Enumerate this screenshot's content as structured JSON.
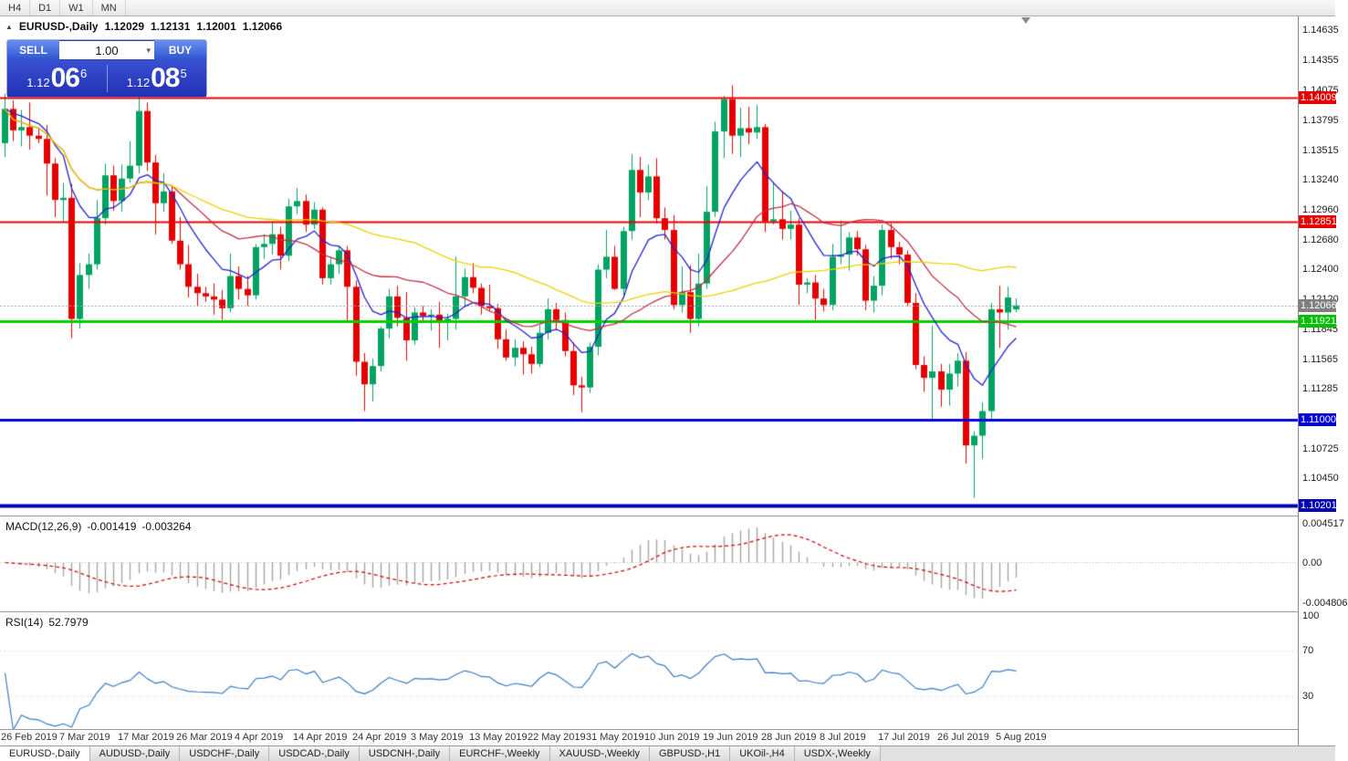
{
  "toolbar": {
    "timeframes": [
      {
        "label": "H4"
      },
      {
        "label": "D1"
      },
      {
        "label": "W1"
      },
      {
        "label": "MN"
      }
    ]
  },
  "chart_header": {
    "collapse_icon": "▲",
    "symbol": "EURUSD-,Daily",
    "open": "1.12029",
    "high": "1.12131",
    "low": "1.12001",
    "close": "1.12066"
  },
  "trade_panel": {
    "sell_label": "SELL",
    "buy_label": "BUY",
    "volume": "1.00",
    "volume_dropdown_icon": "▾",
    "sell_price": {
      "prefix": "1.12",
      "pips": "06",
      "point": "6"
    },
    "buy_price": {
      "prefix": "1.12",
      "pips": "08",
      "point": "5"
    }
  },
  "price_axis": {
    "ticks": [
      "1.14635",
      "1.14355",
      "1.14075",
      "1.13795",
      "1.13515",
      "1.13240",
      "1.12960",
      "1.12680",
      "1.12400",
      "1.12120",
      "1.11845",
      "1.11565",
      "1.11285",
      "1.10725",
      "1.10450"
    ],
    "badges": [
      {
        "name": "resistance-line-1",
        "label": "1.14009",
        "price": 1.14009,
        "color": "#e80000"
      },
      {
        "name": "resistance-line-2",
        "label": "1.12851",
        "price": 1.12851,
        "color": "#e80000"
      },
      {
        "name": "current-price",
        "label": "1.12066",
        "price": 1.12066,
        "color": "#808080"
      },
      {
        "name": "support-line-green",
        "label": "1.11921",
        "price": 1.11921,
        "color": "#00c000"
      },
      {
        "name": "support-line-blue-1",
        "label": "1.11000",
        "price": 1.11,
        "color": "#0000e0"
      },
      {
        "name": "support-line-blue-2",
        "label": "1.10201",
        "price": 1.10201,
        "color": "#0000b4"
      }
    ]
  },
  "date_axis": {
    "ticks": [
      {
        "label": "26 Feb 2019",
        "bar": 0
      },
      {
        "label": "7 Mar 2019",
        "bar": 7
      },
      {
        "label": "17 Mar 2019",
        "bar": 14
      },
      {
        "label": "26 Mar 2019",
        "bar": 21
      },
      {
        "label": "4 Apr 2019",
        "bar": 28
      },
      {
        "label": "14 Apr 2019",
        "bar": 35
      },
      {
        "label": "24 Apr 2019",
        "bar": 42
      },
      {
        "label": "3 May 2019",
        "bar": 49
      },
      {
        "label": "13 May 2019",
        "bar": 56
      },
      {
        "label": "22 May 2019",
        "bar": 63
      },
      {
        "label": "31 May 2019",
        "bar": 70
      },
      {
        "label": "10 Jun 2019",
        "bar": 77
      },
      {
        "label": "19 Jun 2019",
        "bar": 84
      },
      {
        "label": "28 Jun 2019",
        "bar": 91
      },
      {
        "label": "8 Jul 2019",
        "bar": 98
      },
      {
        "label": "17 Jul 2019",
        "bar": 105
      },
      {
        "label": "26 Jul 2019",
        "bar": 112
      },
      {
        "label": "5 Aug 2019",
        "bar": 119
      }
    ]
  },
  "macd_panel": {
    "title": "MACD(12,26,9)",
    "value_main": "-0.001419",
    "value_signal": "-0.003264",
    "axis": [
      {
        "label": "0.004517",
        "value": 0.004517
      },
      {
        "label": "0.00",
        "value": 0
      },
      {
        "label": "-0.004806",
        "value": -0.004806
      }
    ]
  },
  "rsi_panel": {
    "title": "RSI(14)",
    "value": "52.7979",
    "axis": [
      {
        "label": "100",
        "value": 100
      },
      {
        "label": "70",
        "value": 70
      },
      {
        "label": "30",
        "value": 30
      }
    ]
  },
  "tabs": [
    {
      "label": "EURUSD-,Daily",
      "active": true
    },
    {
      "label": "AUDUSD-,Daily",
      "active": false
    },
    {
      "label": "USDCHF-,Daily",
      "active": false
    },
    {
      "label": "USDCAD-,Daily",
      "active": false
    },
    {
      "label": "USDCNH-,Daily",
      "active": false
    },
    {
      "label": "EURCHF-,Weekly",
      "active": false
    },
    {
      "label": "XAUUSD-,Weekly",
      "active": false
    },
    {
      "label": "GBPUSD-,H1",
      "active": false
    },
    {
      "label": "UKOil-,H4",
      "active": false
    },
    {
      "label": "USDX-,Weekly",
      "active": false
    }
  ],
  "chart_data": {
    "type": "candlestick",
    "symbol": "EURUSD",
    "timeframe": "Daily",
    "up_color": "#00a362",
    "down_color": "#e60000",
    "bars": [
      [
        1.1358,
        1.1404,
        1.1345,
        1.139
      ],
      [
        1.139,
        1.1398,
        1.136,
        1.137
      ],
      [
        1.137,
        1.1389,
        1.1355,
        1.1373
      ],
      [
        1.1373,
        1.1396,
        1.1352,
        1.1365
      ],
      [
        1.1365,
        1.1372,
        1.1358,
        1.1362
      ],
      [
        1.1362,
        1.1375,
        1.1309,
        1.1339
      ],
      [
        1.1339,
        1.1344,
        1.1289,
        1.1305
      ],
      [
        1.1305,
        1.1321,
        1.1285,
        1.1307
      ],
      [
        1.1307,
        1.132,
        1.1176,
        1.1194
      ],
      [
        1.1194,
        1.1246,
        1.1185,
        1.1235
      ],
      [
        1.1235,
        1.1255,
        1.1222,
        1.1245
      ],
      [
        1.1245,
        1.1305,
        1.124,
        1.1288
      ],
      [
        1.1288,
        1.1339,
        1.1282,
        1.1328
      ],
      [
        1.1328,
        1.1337,
        1.1295,
        1.1304
      ],
      [
        1.1304,
        1.1338,
        1.1294,
        1.1325
      ],
      [
        1.1325,
        1.136,
        1.1321,
        1.1337
      ],
      [
        1.1337,
        1.1405,
        1.133,
        1.1388
      ],
      [
        1.1388,
        1.1396,
        1.1332,
        1.134
      ],
      [
        1.134,
        1.1347,
        1.1273,
        1.1302
      ],
      [
        1.1302,
        1.133,
        1.1294,
        1.1313
      ],
      [
        1.1313,
        1.1319,
        1.1264,
        1.1267
      ],
      [
        1.1267,
        1.1289,
        1.124,
        1.1245
      ],
      [
        1.1245,
        1.1263,
        1.1214,
        1.1224
      ],
      [
        1.1224,
        1.1236,
        1.1206,
        1.1218
      ],
      [
        1.1218,
        1.1224,
        1.121,
        1.1215
      ],
      [
        1.1215,
        1.1227,
        1.1198,
        1.1212
      ],
      [
        1.1212,
        1.1221,
        1.1193,
        1.1204
      ],
      [
        1.1204,
        1.1255,
        1.12,
        1.1234
      ],
      [
        1.1234,
        1.1243,
        1.1212,
        1.1222
      ],
      [
        1.1222,
        1.1234,
        1.1206,
        1.1216
      ],
      [
        1.1216,
        1.1264,
        1.1212,
        1.1261
      ],
      [
        1.1261,
        1.1273,
        1.125,
        1.1264
      ],
      [
        1.1264,
        1.1285,
        1.1254,
        1.1273
      ],
      [
        1.1273,
        1.128,
        1.124,
        1.1253
      ],
      [
        1.1253,
        1.1306,
        1.1248,
        1.1299
      ],
      [
        1.1299,
        1.1316,
        1.1292,
        1.1304
      ],
      [
        1.1304,
        1.131,
        1.1275,
        1.1282
      ],
      [
        1.1282,
        1.1303,
        1.1278,
        1.1296
      ],
      [
        1.1296,
        1.1298,
        1.1226,
        1.1232
      ],
      [
        1.1232,
        1.1252,
        1.1226,
        1.1245
      ],
      [
        1.1245,
        1.1262,
        1.1236,
        1.1258
      ],
      [
        1.1258,
        1.1262,
        1.1192,
        1.1224
      ],
      [
        1.1224,
        1.123,
        1.1141,
        1.1154
      ],
      [
        1.1154,
        1.1162,
        1.1108,
        1.1133
      ],
      [
        1.1133,
        1.1157,
        1.1117,
        1.115
      ],
      [
        1.115,
        1.1187,
        1.1145,
        1.1185
      ],
      [
        1.1185,
        1.1222,
        1.1176,
        1.1215
      ],
      [
        1.1215,
        1.1225,
        1.1187,
        1.1195
      ],
      [
        1.1195,
        1.1219,
        1.1155,
        1.1174
      ],
      [
        1.1174,
        1.1205,
        1.117,
        1.12
      ],
      [
        1.12,
        1.1206,
        1.119,
        1.1197
      ],
      [
        1.1197,
        1.1203,
        1.1183,
        1.1198
      ],
      [
        1.1198,
        1.121,
        1.1167,
        1.1191
      ],
      [
        1.1191,
        1.1199,
        1.1174,
        1.1194
      ],
      [
        1.1194,
        1.1252,
        1.1184,
        1.1215
      ],
      [
        1.1215,
        1.1241,
        1.1205,
        1.1233
      ],
      [
        1.1233,
        1.1246,
        1.1218,
        1.1223
      ],
      [
        1.1223,
        1.1227,
        1.1198,
        1.1206
      ],
      [
        1.1206,
        1.1226,
        1.1201,
        1.1204
      ],
      [
        1.1204,
        1.1208,
        1.1166,
        1.1175
      ],
      [
        1.1175,
        1.1184,
        1.1155,
        1.1158
      ],
      [
        1.1158,
        1.1175,
        1.115,
        1.1167
      ],
      [
        1.1167,
        1.1173,
        1.1142,
        1.1161
      ],
      [
        1.1161,
        1.1168,
        1.1143,
        1.1152
      ],
      [
        1.1152,
        1.1188,
        1.1149,
        1.1181
      ],
      [
        1.1181,
        1.1213,
        1.1175,
        1.1203
      ],
      [
        1.1203,
        1.1209,
        1.1183,
        1.1193
      ],
      [
        1.1193,
        1.12,
        1.1159,
        1.1164
      ],
      [
        1.1164,
        1.1172,
        1.1123,
        1.1132
      ],
      [
        1.1132,
        1.114,
        1.1107,
        1.113
      ],
      [
        1.113,
        1.1172,
        1.1125,
        1.1168
      ],
      [
        1.1168,
        1.1245,
        1.116,
        1.124
      ],
      [
        1.124,
        1.1277,
        1.1232,
        1.1252
      ],
      [
        1.1252,
        1.1262,
        1.1221,
        1.1222
      ],
      [
        1.1222,
        1.128,
        1.1215,
        1.1276
      ],
      [
        1.1276,
        1.1348,
        1.1268,
        1.1333
      ],
      [
        1.1333,
        1.1345,
        1.1289,
        1.1312
      ],
      [
        1.1312,
        1.1338,
        1.1305,
        1.1327
      ],
      [
        1.1327,
        1.1344,
        1.1283,
        1.1288
      ],
      [
        1.1288,
        1.1298,
        1.1268,
        1.1277
      ],
      [
        1.1277,
        1.1291,
        1.1203,
        1.1207
      ],
      [
        1.1207,
        1.1243,
        1.12,
        1.1219
      ],
      [
        1.1219,
        1.1244,
        1.1181,
        1.1194
      ],
      [
        1.1194,
        1.1255,
        1.1187,
        1.1227
      ],
      [
        1.1227,
        1.1318,
        1.1222,
        1.1294
      ],
      [
        1.1294,
        1.1378,
        1.1289,
        1.1369
      ],
      [
        1.1369,
        1.1402,
        1.1344,
        1.1399
      ],
      [
        1.1399,
        1.1412,
        1.1348,
        1.1365
      ],
      [
        1.1365,
        1.1391,
        1.1345,
        1.1372
      ],
      [
        1.1372,
        1.1392,
        1.1357,
        1.1368
      ],
      [
        1.1368,
        1.1394,
        1.1362,
        1.1373
      ],
      [
        1.1373,
        1.1376,
        1.1275,
        1.1285
      ],
      [
        1.1285,
        1.1322,
        1.1282,
        1.1287
      ],
      [
        1.1287,
        1.1313,
        1.1268,
        1.1278
      ],
      [
        1.1278,
        1.1295,
        1.1268,
        1.1282
      ],
      [
        1.1282,
        1.1288,
        1.1207,
        1.1226
      ],
      [
        1.1226,
        1.1232,
        1.1218,
        1.1228
      ],
      [
        1.1228,
        1.1235,
        1.1193,
        1.1213
      ],
      [
        1.1213,
        1.1222,
        1.1201,
        1.1207
      ],
      [
        1.1207,
        1.1264,
        1.1202,
        1.1252
      ],
      [
        1.1252,
        1.1286,
        1.1245,
        1.1254
      ],
      [
        1.1254,
        1.1275,
        1.1239,
        1.127
      ],
      [
        1.127,
        1.1276,
        1.1253,
        1.1259
      ],
      [
        1.1259,
        1.1263,
        1.1202,
        1.1211
      ],
      [
        1.1211,
        1.1234,
        1.12,
        1.1225
      ],
      [
        1.1225,
        1.1282,
        1.1216,
        1.1277
      ],
      [
        1.1277,
        1.1283,
        1.125,
        1.1261
      ],
      [
        1.1261,
        1.1266,
        1.1245,
        1.1254
      ],
      [
        1.1254,
        1.1258,
        1.1206,
        1.1209
      ],
      [
        1.1209,
        1.1218,
        1.1147,
        1.1151
      ],
      [
        1.1151,
        1.1159,
        1.1126,
        1.1139
      ],
      [
        1.1139,
        1.1188,
        1.1101,
        1.1145
      ],
      [
        1.1145,
        1.1152,
        1.1112,
        1.1128
      ],
      [
        1.1128,
        1.1152,
        1.1113,
        1.1143
      ],
      [
        1.1143,
        1.1162,
        1.1131,
        1.1155
      ],
      [
        1.1155,
        1.1163,
        1.1059,
        1.1076
      ],
      [
        1.1076,
        1.1089,
        1.1027,
        1.1085
      ],
      [
        1.1085,
        1.1116,
        1.1063,
        1.1108
      ],
      [
        1.1108,
        1.1209,
        1.1101,
        1.1203
      ],
      [
        1.1203,
        1.1225,
        1.1167,
        1.12
      ],
      [
        1.12,
        1.1224,
        1.1184,
        1.1214
      ],
      [
        1.12029,
        1.12131,
        1.12001,
        1.12066
      ]
    ],
    "hlines": [
      {
        "price": 1.14009,
        "color": "#e80000",
        "width": 2,
        "style": "solid"
      },
      {
        "price": 1.12851,
        "color": "#e80000",
        "width": 2,
        "style": "solid"
      },
      {
        "price": 1.11921,
        "color": "#00d000",
        "width": 3,
        "style": "solid"
      },
      {
        "price": 1.11,
        "color": "#0000e0",
        "width": 3,
        "style": "solid"
      },
      {
        "price": 1.10201,
        "color": "#0000b4",
        "width": 4,
        "style": "solid"
      },
      {
        "price": 1.12066,
        "color": "#a0a0a0",
        "width": 1,
        "style": "dotted"
      }
    ],
    "moving_averages": [
      {
        "type": "ema",
        "period": 9,
        "color": "#2222cc"
      },
      {
        "type": "sma",
        "period": 21,
        "color": "#c03048"
      },
      {
        "type": "sma",
        "period": 50,
        "color": "#ead200"
      }
    ],
    "macd": {
      "fast": 12,
      "slow": 26,
      "signal": 9,
      "histogram_color": "#a6a6a6",
      "signal_color": "#cc0000"
    },
    "rsi": {
      "period": 14,
      "color": "#3b7bbf",
      "levels": [
        30,
        70
      ],
      "level_color": "#c6c6c6"
    }
  }
}
